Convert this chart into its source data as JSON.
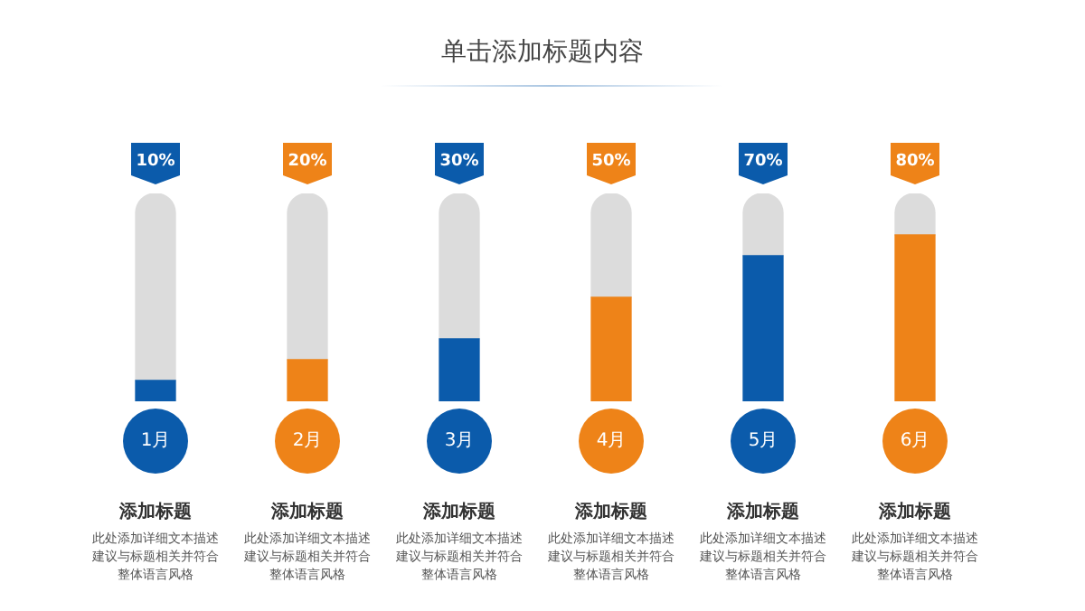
{
  "chart_data": {
    "type": "bar",
    "title": "单击添加标题内容",
    "categories": [
      "1月",
      "2月",
      "3月",
      "4月",
      "5月",
      "6月"
    ],
    "stacked": true,
    "series": [
      {
        "values": [
          10,
          20,
          30,
          50,
          70,
          80
        ],
        "colors": [
          "#0b5bab",
          "#ee8318",
          "#0b5bab",
          "#ee8318",
          "#0b5bab",
          "#ee8318"
        ],
        "value_labels": [
          "10%",
          "20%",
          "30%",
          "50%",
          "70%",
          "80%"
        ]
      },
      {
        "values": [
          90,
          80,
          70,
          50,
          30,
          20
        ],
        "color": "#dcdcdc"
      }
    ],
    "ylim": [
      0,
      100
    ],
    "annotations": [
      "添加标题",
      "此处添加详细文本描述建议与标题相关并符合整体语言风格",
      "添加标题",
      "此处添加详细文本描述建议与标题相关并符合整体语言风格",
      "添加标题",
      "此处添加详细文本描述建议与标题相关并符合整体语言风格",
      "添加标题",
      "此处添加详细文本描述建议与标题相关并符合整体语言风格",
      "添加标题",
      "此处添加详细文本描述建议与标题相关并符合整体语言风格",
      "添加标题",
      "此处添加详细文本描述建议与标题相关并符合整体语言风格"
    ],
    "legend": false
  }
}
